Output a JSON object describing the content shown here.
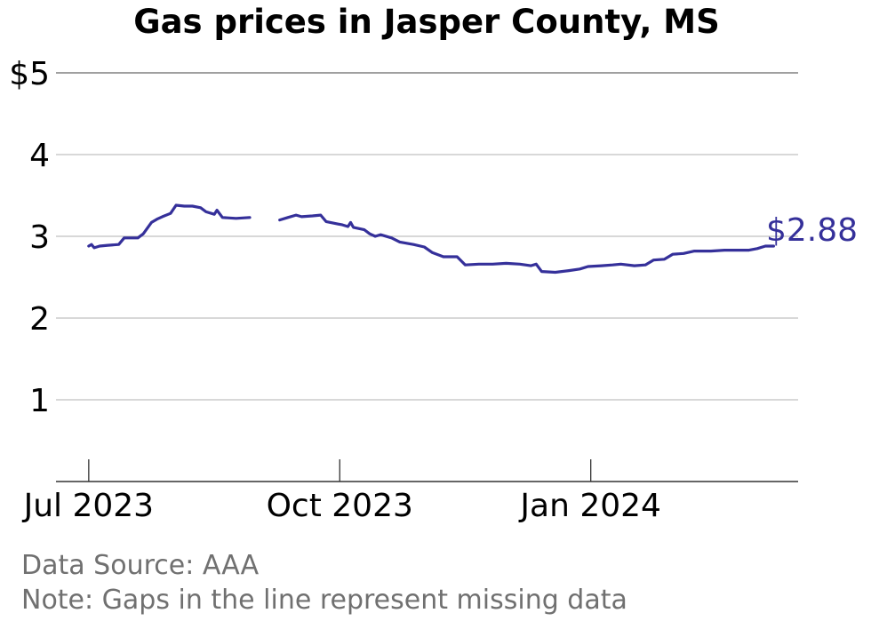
{
  "chart_data": {
    "type": "line",
    "title": "Gas prices in Jasper County, MS",
    "xlabel": "",
    "ylabel": "",
    "ylim": [
      0,
      5
    ],
    "xlim": [
      "2023-06-19",
      "2024-03-17"
    ],
    "yticks": [
      {
        "value": 1,
        "label": "1"
      },
      {
        "value": 2,
        "label": "2"
      },
      {
        "value": 3,
        "label": "3"
      },
      {
        "value": 4,
        "label": "4"
      },
      {
        "value": 5,
        "label": "$5"
      }
    ],
    "xticks": [
      {
        "date": "2023-07-01",
        "label": "Jul 2023"
      },
      {
        "date": "2023-10-01",
        "label": "Oct 2023"
      },
      {
        "date": "2024-01-01",
        "label": "Jan 2024"
      }
    ],
    "grid": true,
    "line_color": "#35309a",
    "end_label": "$2.88",
    "series": [
      {
        "segments": [
          [
            [
              "2023-07-01",
              2.88
            ],
            [
              "2023-07-02",
              2.9
            ],
            [
              "2023-07-03",
              2.86
            ],
            [
              "2023-07-05",
              2.88
            ],
            [
              "2023-07-08",
              2.89
            ],
            [
              "2023-07-12",
              2.9
            ],
            [
              "2023-07-14",
              2.98
            ],
            [
              "2023-07-19",
              2.98
            ],
            [
              "2023-07-21",
              3.03
            ],
            [
              "2023-07-24",
              3.17
            ],
            [
              "2023-07-26",
              3.21
            ],
            [
              "2023-07-28",
              3.24
            ],
            [
              "2023-07-31",
              3.28
            ],
            [
              "2023-08-02",
              3.38
            ],
            [
              "2023-08-05",
              3.37
            ],
            [
              "2023-08-08",
              3.37
            ],
            [
              "2023-08-11",
              3.35
            ],
            [
              "2023-08-13",
              3.3
            ],
            [
              "2023-08-16",
              3.27
            ],
            [
              "2023-08-17",
              3.32
            ],
            [
              "2023-08-19",
              3.23
            ],
            [
              "2023-08-24",
              3.22
            ],
            [
              "2023-08-29",
              3.23
            ]
          ],
          [
            [
              "2023-09-09",
              3.2
            ],
            [
              "2023-09-12",
              3.23
            ],
            [
              "2023-09-15",
              3.26
            ],
            [
              "2023-09-17",
              3.24
            ],
            [
              "2023-09-21",
              3.25
            ],
            [
              "2023-09-24",
              3.26
            ],
            [
              "2023-09-26",
              3.18
            ],
            [
              "2023-09-29",
              3.16
            ],
            [
              "2023-10-02",
              3.14
            ],
            [
              "2023-10-04",
              3.12
            ],
            [
              "2023-10-05",
              3.17
            ],
            [
              "2023-10-06",
              3.11
            ],
            [
              "2023-10-10",
              3.08
            ],
            [
              "2023-10-12",
              3.03
            ],
            [
              "2023-10-14",
              3.0
            ],
            [
              "2023-10-16",
              3.02
            ],
            [
              "2023-10-20",
              2.98
            ],
            [
              "2023-10-23",
              2.93
            ],
            [
              "2023-10-28",
              2.9
            ],
            [
              "2023-11-01",
              2.87
            ],
            [
              "2023-11-04",
              2.8
            ],
            [
              "2023-11-08",
              2.75
            ],
            [
              "2023-11-13",
              2.75
            ],
            [
              "2023-11-16",
              2.65
            ],
            [
              "2023-11-21",
              2.66
            ],
            [
              "2023-11-26",
              2.66
            ],
            [
              "2023-12-01",
              2.67
            ],
            [
              "2023-12-06",
              2.66
            ],
            [
              "2023-12-10",
              2.64
            ],
            [
              "2023-12-12",
              2.66
            ],
            [
              "2023-12-14",
              2.57
            ],
            [
              "2023-12-19",
              2.56
            ],
            [
              "2023-12-24",
              2.58
            ],
            [
              "2023-12-28",
              2.6
            ],
            [
              "2023-12-31",
              2.63
            ],
            [
              "2024-01-05",
              2.64
            ],
            [
              "2024-01-09",
              2.65
            ],
            [
              "2024-01-12",
              2.66
            ],
            [
              "2024-01-17",
              2.64
            ],
            [
              "2024-01-21",
              2.65
            ],
            [
              "2024-01-24",
              2.71
            ],
            [
              "2024-01-28",
              2.72
            ],
            [
              "2024-01-31",
              2.78
            ],
            [
              "2024-02-04",
              2.79
            ],
            [
              "2024-02-08",
              2.82
            ],
            [
              "2024-02-14",
              2.82
            ],
            [
              "2024-02-19",
              2.83
            ],
            [
              "2024-02-24",
              2.83
            ],
            [
              "2024-02-28",
              2.83
            ],
            [
              "2024-03-02",
              2.85
            ],
            [
              "2024-03-05",
              2.88
            ],
            [
              "2024-03-08",
              2.88
            ]
          ]
        ]
      }
    ]
  },
  "footer": {
    "source": "Data Source: AAA",
    "note": "Note: Gaps in the line represent missing data"
  }
}
